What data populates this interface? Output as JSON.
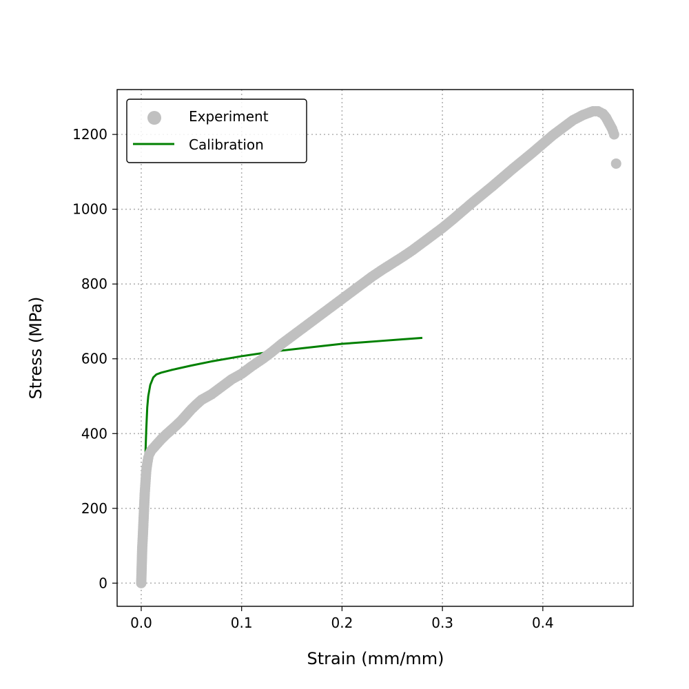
{
  "chart_data": {
    "type": "scatter",
    "xlabel": "Strain (mm/mm)",
    "ylabel": "Stress (MPa)",
    "xlim": [
      -0.024,
      0.49
    ],
    "ylim": [
      -62,
      1320
    ],
    "xticks": [
      0.0,
      0.1,
      0.2,
      0.3,
      0.4
    ],
    "xtick_labels": [
      "0.0",
      "0.1",
      "0.2",
      "0.3",
      "0.4"
    ],
    "yticks": [
      0,
      200,
      400,
      600,
      800,
      1000,
      1200
    ],
    "ytick_labels": [
      "0",
      "200",
      "400",
      "600",
      "800",
      "1000",
      "1200"
    ],
    "grid": true,
    "legend_position": "top-left",
    "colors": {
      "experiment": "#c0c0c0",
      "calibration": "#008000"
    },
    "series": [
      {
        "name": "Experiment",
        "kind": "scatter",
        "points": [
          [
            0.0,
            0
          ],
          [
            0.001,
            95
          ],
          [
            0.0015,
            120
          ],
          [
            0.002,
            150
          ],
          [
            0.0025,
            180
          ],
          [
            0.003,
            210
          ],
          [
            0.0035,
            240
          ],
          [
            0.004,
            260
          ],
          [
            0.0045,
            280
          ],
          [
            0.005,
            300
          ],
          [
            0.006,
            320
          ],
          [
            0.007,
            335
          ],
          [
            0.008,
            345
          ],
          [
            0.01,
            355
          ],
          [
            0.015,
            370
          ],
          [
            0.02,
            385
          ],
          [
            0.025,
            398
          ],
          [
            0.03,
            410
          ],
          [
            0.035,
            422
          ],
          [
            0.04,
            435
          ],
          [
            0.045,
            450
          ],
          [
            0.05,
            465
          ],
          [
            0.055,
            478
          ],
          [
            0.06,
            490
          ],
          [
            0.07,
            505
          ],
          [
            0.08,
            525
          ],
          [
            0.09,
            545
          ],
          [
            0.1,
            560
          ],
          [
            0.11,
            580
          ],
          [
            0.12,
            598
          ],
          [
            0.13,
            618
          ],
          [
            0.14,
            640
          ],
          [
            0.15,
            660
          ],
          [
            0.16,
            680
          ],
          [
            0.17,
            700
          ],
          [
            0.18,
            720
          ],
          [
            0.19,
            740
          ],
          [
            0.2,
            760
          ],
          [
            0.21,
            780
          ],
          [
            0.22,
            800
          ],
          [
            0.23,
            820
          ],
          [
            0.24,
            838
          ],
          [
            0.25,
            855
          ],
          [
            0.26,
            872
          ],
          [
            0.27,
            890
          ],
          [
            0.28,
            910
          ],
          [
            0.29,
            930
          ],
          [
            0.3,
            950
          ],
          [
            0.31,
            972
          ],
          [
            0.32,
            995
          ],
          [
            0.33,
            1018
          ],
          [
            0.34,
            1040
          ],
          [
            0.35,
            1062
          ],
          [
            0.36,
            1085
          ],
          [
            0.37,
            1108
          ],
          [
            0.38,
            1130
          ],
          [
            0.39,
            1152
          ],
          [
            0.4,
            1175
          ],
          [
            0.41,
            1198
          ],
          [
            0.42,
            1218
          ],
          [
            0.43,
            1238
          ],
          [
            0.44,
            1252
          ],
          [
            0.45,
            1262
          ],
          [
            0.455,
            1262
          ],
          [
            0.46,
            1255
          ],
          [
            0.463,
            1245
          ],
          [
            0.466,
            1230
          ],
          [
            0.469,
            1215
          ],
          [
            0.471,
            1200
          ],
          [
            0.473,
            1122
          ]
        ]
      },
      {
        "name": "Calibration",
        "kind": "line",
        "points": [
          [
            0.0,
            0
          ],
          [
            0.002,
            150
          ],
          [
            0.003,
            250
          ],
          [
            0.004,
            330
          ],
          [
            0.005,
            410
          ],
          [
            0.006,
            470
          ],
          [
            0.007,
            500
          ],
          [
            0.009,
            530
          ],
          [
            0.012,
            550
          ],
          [
            0.015,
            558
          ],
          [
            0.02,
            563
          ],
          [
            0.03,
            570
          ],
          [
            0.05,
            582
          ],
          [
            0.07,
            593
          ],
          [
            0.1,
            607
          ],
          [
            0.12,
            615
          ],
          [
            0.14,
            622
          ],
          [
            0.16,
            628
          ],
          [
            0.18,
            634
          ],
          [
            0.2,
            640
          ],
          [
            0.22,
            644
          ],
          [
            0.24,
            648
          ],
          [
            0.26,
            652
          ],
          [
            0.28,
            656
          ]
        ]
      }
    ]
  }
}
